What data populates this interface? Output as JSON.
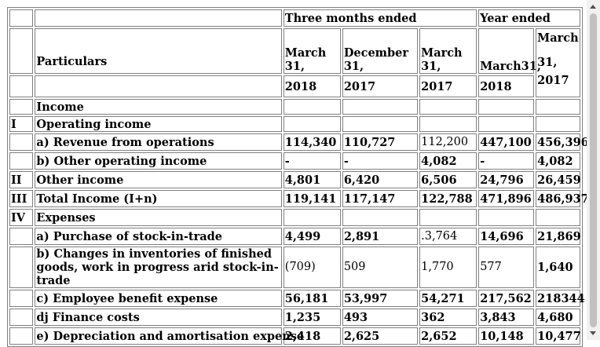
{
  "header": {
    "three_months_ended": "Three months ended",
    "year_ended": "Year ended",
    "particulars": "Particulars",
    "col1": {
      "line1": "March",
      "line2": "31,",
      "year": "2018"
    },
    "col2": {
      "line1": "December",
      "line2": "31,",
      "year": "2017"
    },
    "col3": {
      "line1": "March",
      "line2": "31,",
      "year": "2017"
    },
    "col4": {
      "line1": "March31,",
      "year": "2018"
    },
    "col5": {
      "line1": "March",
      "line2": "31,",
      "year": "2017"
    }
  },
  "rows": [
    {
      "num": "",
      "label": "Income",
      "v1": "",
      "v2": "",
      "v3": "",
      "v4": "",
      "v5": ""
    },
    {
      "num": "I",
      "label": "Operating income",
      "v1": "",
      "v2": "",
      "v3": "",
      "v4": "",
      "v5": ""
    },
    {
      "num": "",
      "label": "a) Revenue from operations",
      "v1": "114,340",
      "v2": "110,727",
      "v3": "112,200",
      "v4": "447,100",
      "v5": "456,396"
    },
    {
      "num": "",
      "label": "b) Other operating income",
      "v1": "-",
      "v2": "-",
      "v3": "4,082",
      "v4": "-",
      "v5": "4,082"
    },
    {
      "num": "II",
      "label": "Other income",
      "v1": "4,801",
      "v2": "6,420",
      "v3": "6,506",
      "v4": "24,796",
      "v5": "26,459"
    },
    {
      "num": "III",
      "label": "Total Income (I+n)",
      "v1": "119,141",
      "v2": "117,147",
      "v3": "122,788",
      "v4": "471,896",
      "v5": "486,937"
    },
    {
      "num": "IV",
      "label": "Expenses",
      "v1": "",
      "v2": "",
      "v3": "",
      "v4": "",
      "v5": ""
    },
    {
      "num": "",
      "label": "a) Purchase of stock-in-trade",
      "v1": "4,499",
      "v2": "2,891",
      "v3": ".3,764",
      "v4": "14,696",
      "v5": "21,869"
    },
    {
      "num": "",
      "label": "b) Changes in inventories of finished goods, work in progress arid stock-in-trade",
      "v1": "(709)",
      "v2": "509",
      "v3": "1,770",
      "v4": "577",
      "v5": "1,640"
    },
    {
      "num": "",
      "label": "c) Employee benefit expense",
      "v1": "56,181",
      "v2": "53,997",
      "v3": "54,271",
      "v4": "217,562",
      "v5": "218344"
    },
    {
      "num": "",
      "label": "dj Finance costs",
      "v1": "1,235",
      "v2": "493",
      "v3": "362",
      "v4": "3,843",
      "v5": "4,680"
    },
    {
      "num": "",
      "label": "e) Depreciation and amortisation expense",
      "v1": "2,418",
      "v2": "2,625",
      "v3": "2,652",
      "v4": "10,148",
      "v5": "10,477"
    }
  ],
  "colors": {
    "border": "#808080",
    "scroll_track": "#f1f1f1",
    "scroll_thumb": "#c1c1c1"
  },
  "icons": {
    "scroll_up": "arrow-up-icon",
    "scroll_down": "arrow-down-icon"
  }
}
